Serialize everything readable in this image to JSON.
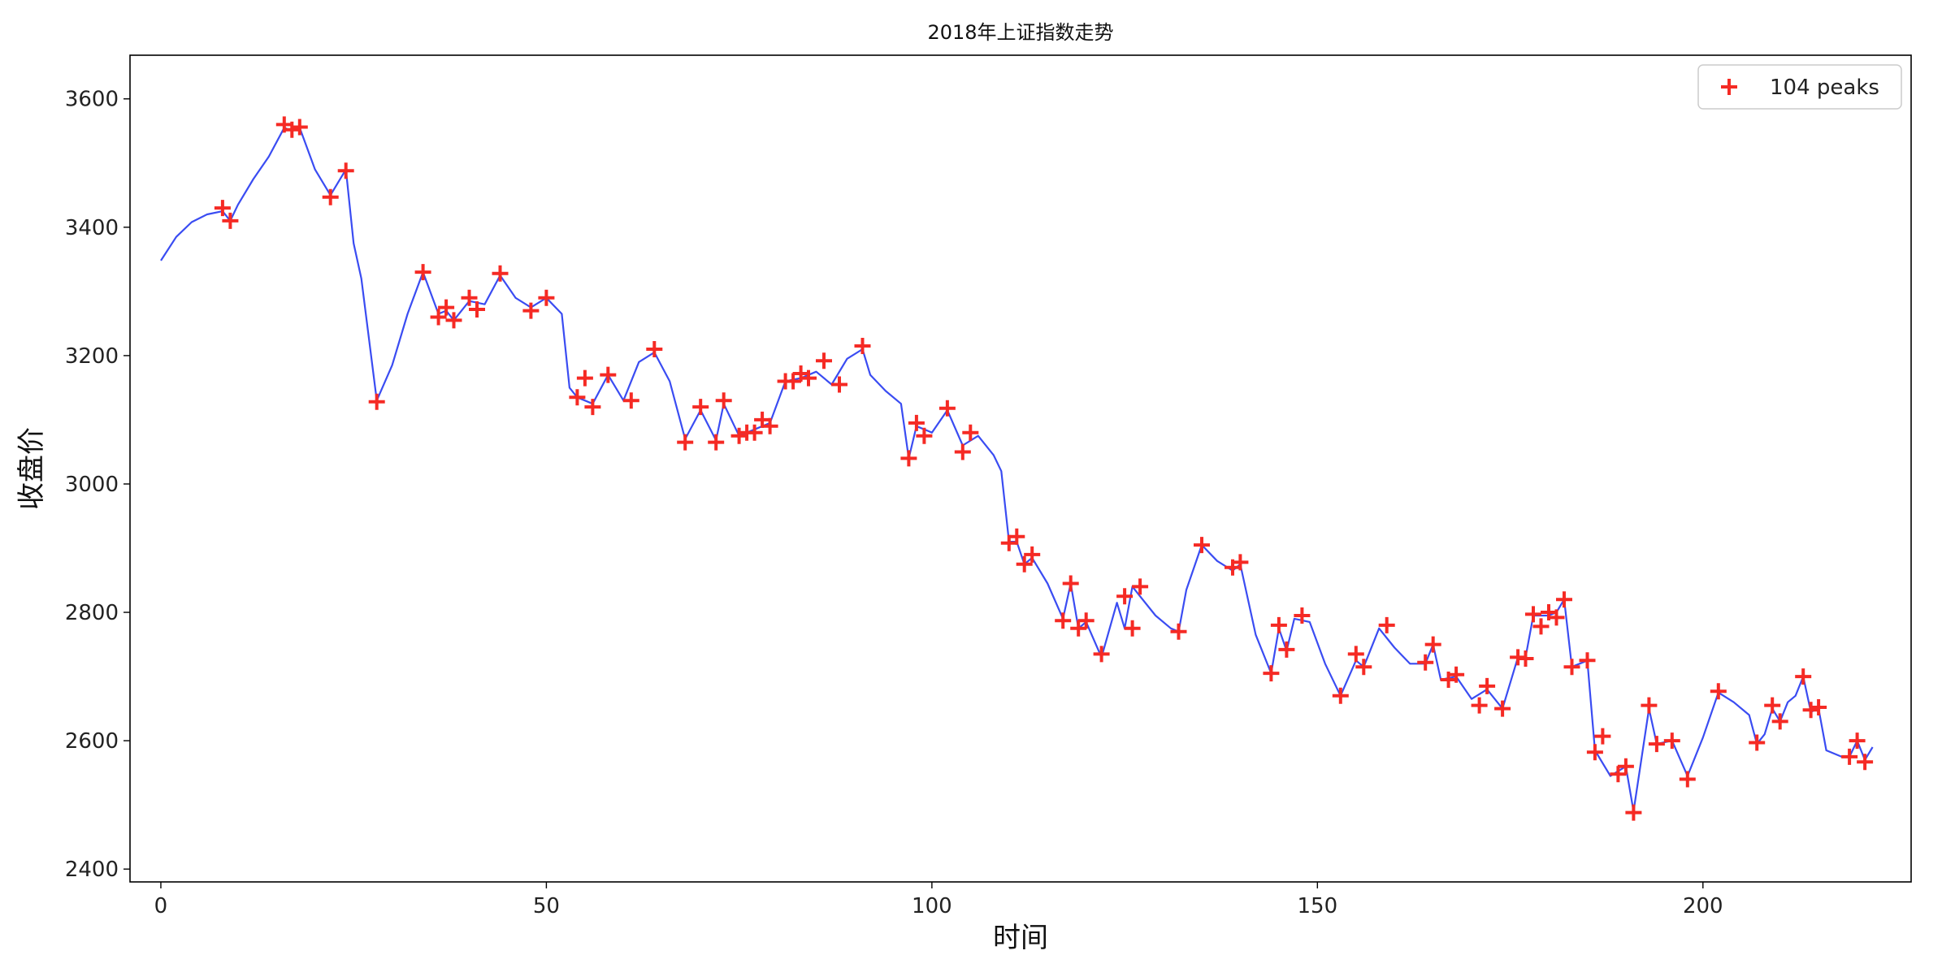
{
  "chart_data": {
    "type": "line",
    "title": "2018年上证指数走势",
    "xlabel": "时间",
    "ylabel": "收盘价",
    "xlim": [
      -4,
      227
    ],
    "ylim": [
      2380,
      3668
    ],
    "xticks": [
      0,
      50,
      100,
      150,
      200
    ],
    "yticks": [
      2400,
      2600,
      2800,
      3000,
      3200,
      3400,
      3600
    ],
    "grid": false,
    "legend_position": "top-right",
    "colors": {
      "line": "#3a4cf2",
      "peaks": "#f52a24"
    },
    "series": [
      {
        "type": "line",
        "x": [
          0,
          2,
          4,
          6,
          8,
          9,
          10,
          12,
          14,
          16,
          17,
          18,
          20,
          22,
          24,
          25,
          26,
          28,
          30,
          32,
          34,
          36,
          37,
          38,
          40,
          42,
          44,
          46,
          48,
          50,
          52,
          53,
          54,
          56,
          58,
          60,
          62,
          64,
          66,
          68,
          70,
          72,
          73,
          75,
          77,
          79,
          81,
          83,
          85,
          87,
          89,
          91,
          92,
          94,
          96,
          97,
          98,
          100,
          102,
          104,
          106,
          108,
          109,
          110,
          111,
          112,
          113,
          115,
          117,
          118,
          119,
          120,
          122,
          124,
          125,
          126,
          127,
          129,
          131,
          132,
          133,
          135,
          137,
          139,
          140,
          142,
          144,
          145,
          146,
          147,
          149,
          151,
          153,
          155,
          156,
          158,
          160,
          162,
          164,
          165,
          166,
          168,
          170,
          172,
          174,
          176,
          177,
          178,
          180,
          181,
          182,
          183,
          184,
          185,
          186,
          188,
          190,
          191,
          193,
          194,
          196,
          198,
          200,
          202,
          204,
          206,
          207,
          208,
          209,
          210,
          211,
          212,
          213,
          214,
          215,
          216,
          218,
          219,
          220,
          221,
          222
        ],
        "y": [
          3348,
          3385,
          3408,
          3420,
          3425,
          3410,
          3435,
          3475,
          3510,
          3555,
          3550,
          3555,
          3490,
          3450,
          3490,
          3375,
          3320,
          3130,
          3185,
          3265,
          3330,
          3265,
          3270,
          3255,
          3285,
          3280,
          3325,
          3290,
          3275,
          3290,
          3265,
          3150,
          3135,
          3125,
          3170,
          3130,
          3190,
          3205,
          3160,
          3070,
          3115,
          3068,
          3125,
          3075,
          3085,
          3095,
          3160,
          3165,
          3175,
          3155,
          3195,
          3210,
          3170,
          3145,
          3125,
          3040,
          3090,
          3080,
          3115,
          3060,
          3075,
          3045,
          3020,
          2910,
          2910,
          2875,
          2885,
          2845,
          2790,
          2845,
          2775,
          2785,
          2730,
          2815,
          2775,
          2840,
          2825,
          2795,
          2775,
          2770,
          2835,
          2905,
          2880,
          2865,
          2875,
          2765,
          2705,
          2775,
          2740,
          2790,
          2785,
          2720,
          2670,
          2725,
          2715,
          2775,
          2745,
          2720,
          2720,
          2750,
          2695,
          2700,
          2665,
          2680,
          2650,
          2730,
          2730,
          2795,
          2795,
          2800,
          2820,
          2715,
          2720,
          2725,
          2585,
          2545,
          2560,
          2490,
          2650,
          2595,
          2600,
          2545,
          2605,
          2675,
          2660,
          2640,
          2595,
          2610,
          2650,
          2630,
          2660,
          2670,
          2700,
          2645,
          2650,
          2585,
          2575,
          2575,
          2600,
          2570,
          2590
        ],
        "color": "#3a4cf2"
      },
      {
        "type": "scatter",
        "name": "104 peaks",
        "marker": "+",
        "color": "#f52a24",
        "points": [
          [
            8,
            3430
          ],
          [
            9,
            3410
          ],
          [
            16,
            3560
          ],
          [
            17,
            3552
          ],
          [
            18,
            3556
          ],
          [
            22,
            3447
          ],
          [
            24,
            3488
          ],
          [
            28,
            3128
          ],
          [
            34,
            3330
          ],
          [
            36,
            3260
          ],
          [
            37,
            3275
          ],
          [
            38,
            3255
          ],
          [
            40,
            3290
          ],
          [
            41,
            3272
          ],
          [
            44,
            3328
          ],
          [
            48,
            3270
          ],
          [
            50,
            3290
          ],
          [
            54,
            3135
          ],
          [
            55,
            3165
          ],
          [
            56,
            3120
          ],
          [
            58,
            3170
          ],
          [
            61,
            3130
          ],
          [
            64,
            3210
          ],
          [
            68,
            3065
          ],
          [
            70,
            3120
          ],
          [
            72,
            3065
          ],
          [
            73,
            3130
          ],
          [
            75,
            3075
          ],
          [
            76,
            3080
          ],
          [
            77,
            3080
          ],
          [
            78,
            3100
          ],
          [
            79,
            3090
          ],
          [
            81,
            3160
          ],
          [
            82,
            3160
          ],
          [
            83,
            3172
          ],
          [
            84,
            3165
          ],
          [
            86,
            3192
          ],
          [
            88,
            3155
          ],
          [
            91,
            3215
          ],
          [
            97,
            3040
          ],
          [
            98,
            3095
          ],
          [
            99,
            3075
          ],
          [
            102,
            3118
          ],
          [
            104,
            3050
          ],
          [
            105,
            3080
          ],
          [
            110,
            2908
          ],
          [
            111,
            2918
          ],
          [
            112,
            2875
          ],
          [
            113,
            2890
          ],
          [
            117,
            2787
          ],
          [
            118,
            2845
          ],
          [
            119,
            2775
          ],
          [
            120,
            2787
          ],
          [
            122,
            2735
          ],
          [
            125,
            2825
          ],
          [
            126,
            2775
          ],
          [
            127,
            2840
          ],
          [
            132,
            2770
          ],
          [
            135,
            2905
          ],
          [
            139,
            2870
          ],
          [
            140,
            2878
          ],
          [
            144,
            2705
          ],
          [
            145,
            2780
          ],
          [
            146,
            2742
          ],
          [
            148,
            2795
          ],
          [
            153,
            2670
          ],
          [
            155,
            2735
          ],
          [
            156,
            2715
          ],
          [
            159,
            2780
          ],
          [
            164,
            2722
          ],
          [
            165,
            2750
          ],
          [
            167,
            2695
          ],
          [
            168,
            2703
          ],
          [
            171,
            2655
          ],
          [
            172,
            2685
          ],
          [
            174,
            2650
          ],
          [
            176,
            2730
          ],
          [
            177,
            2728
          ],
          [
            178,
            2797
          ],
          [
            179,
            2778
          ],
          [
            180,
            2800
          ],
          [
            181,
            2792
          ],
          [
            182,
            2820
          ],
          [
            183,
            2715
          ],
          [
            185,
            2725
          ],
          [
            186,
            2582
          ],
          [
            187,
            2607
          ],
          [
            189,
            2548
          ],
          [
            190,
            2560
          ],
          [
            191,
            2488
          ],
          [
            193,
            2655
          ],
          [
            194,
            2595
          ],
          [
            196,
            2600
          ],
          [
            198,
            2540
          ],
          [
            202,
            2677
          ],
          [
            207,
            2597
          ],
          [
            209,
            2655
          ],
          [
            210,
            2630
          ],
          [
            213,
            2700
          ],
          [
            214,
            2648
          ],
          [
            215,
            2652
          ],
          [
            219,
            2575
          ],
          [
            220,
            2600
          ],
          [
            221,
            2567
          ]
        ]
      }
    ]
  }
}
